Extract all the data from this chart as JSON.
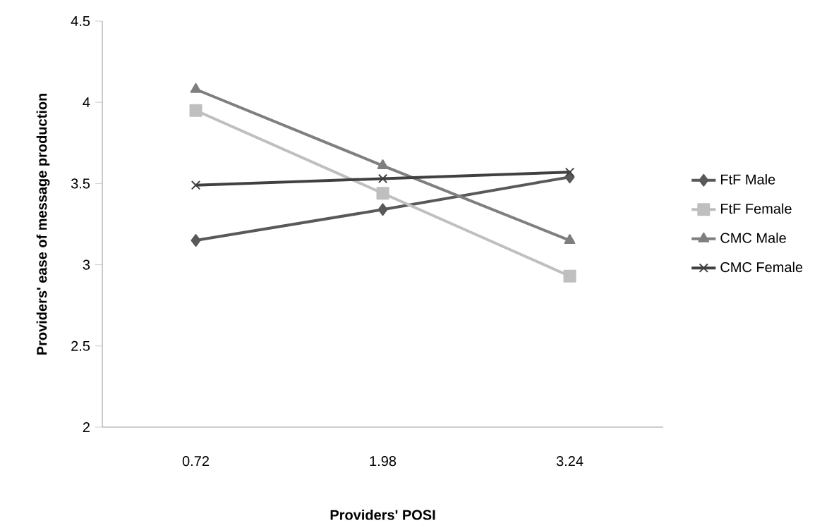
{
  "chart_data": {
    "type": "line",
    "xlabel": "Providers' POSI",
    "ylabel": "Providers' ease of message production",
    "categories": [
      "0.72",
      "1.98",
      "3.24"
    ],
    "ylim": [
      2,
      4.5
    ],
    "yticks": [
      2,
      2.5,
      3,
      3.5,
      4,
      4.5
    ],
    "grid": false,
    "legend": "right",
    "series": [
      {
        "name": "FtF Male",
        "color": "#595959",
        "marker": "diamond",
        "values": [
          3.15,
          3.34,
          3.54
        ]
      },
      {
        "name": "FtF Female",
        "color": "#bfbfbf",
        "marker": "square",
        "values": [
          3.95,
          3.44,
          2.93
        ]
      },
      {
        "name": "CMC Male",
        "color": "#7f7f7f",
        "marker": "triangle",
        "values": [
          4.08,
          3.61,
          3.15
        ]
      },
      {
        "name": "CMC Female",
        "color": "#404040",
        "marker": "cross",
        "values": [
          3.49,
          3.53,
          3.57
        ]
      }
    ]
  }
}
